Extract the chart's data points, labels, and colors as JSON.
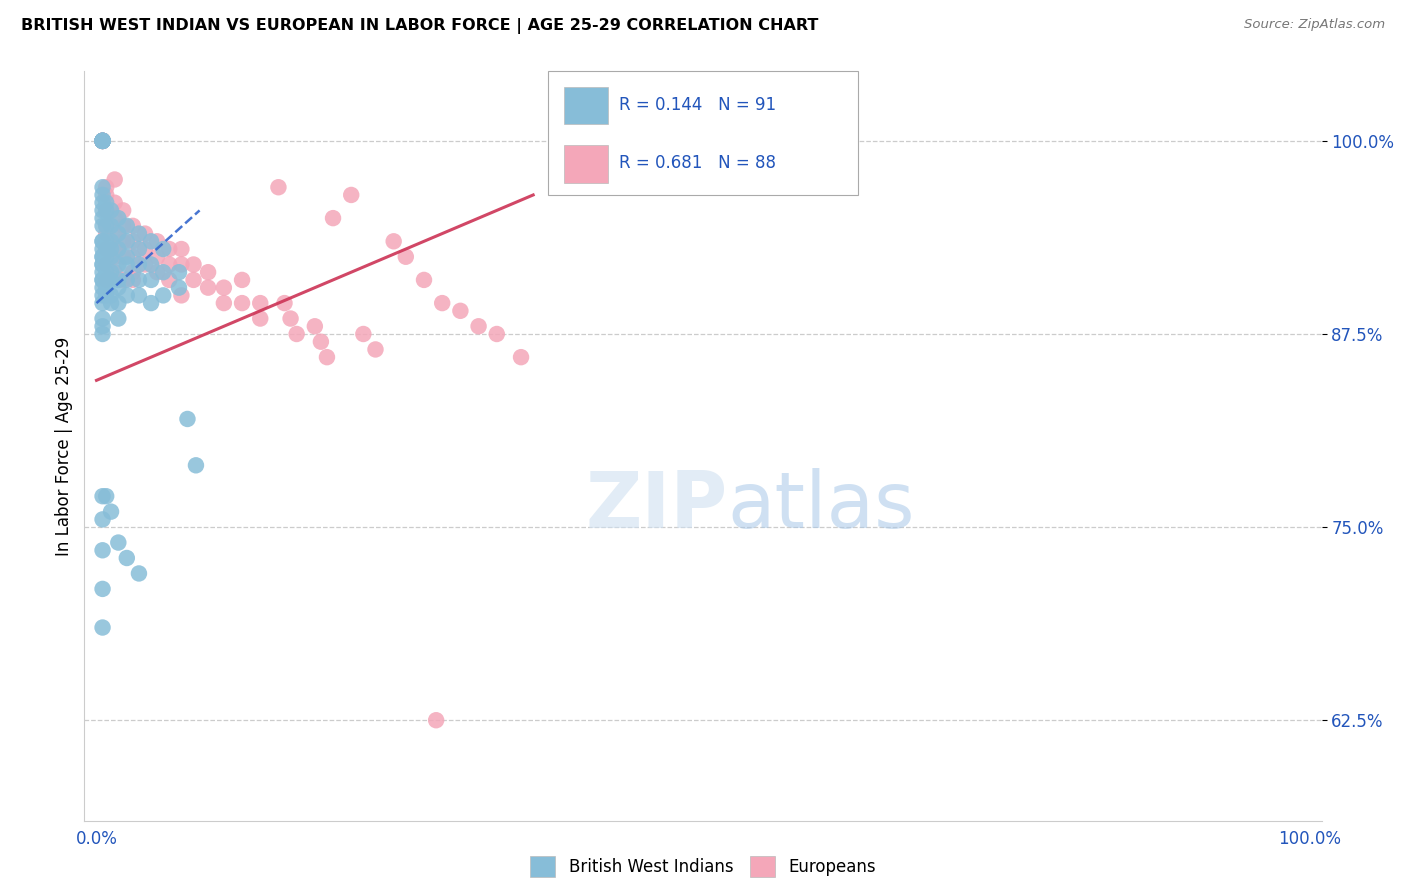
{
  "title": "BRITISH WEST INDIAN VS EUROPEAN IN LABOR FORCE | AGE 25-29 CORRELATION CHART",
  "source": "Source: ZipAtlas.com",
  "ylabel": "In Labor Force | Age 25-29",
  "ytick_labels": [
    "62.5%",
    "75.0%",
    "87.5%",
    "100.0%"
  ],
  "ytick_values": [
    0.625,
    0.75,
    0.875,
    1.0
  ],
  "xlim": [
    -0.01,
    1.01
  ],
  "ylim": [
    0.56,
    1.045
  ],
  "legend_label_blue": "British West Indians",
  "legend_label_pink": "Europeans",
  "blue_color": "#87bdd8",
  "pink_color": "#f4a7b9",
  "blue_line_color": "#3366cc",
  "pink_line_color": "#cc3355",
  "blue_scatter_x": [
    0.005,
    0.005,
    0.005,
    0.005,
    0.005,
    0.005,
    0.005,
    0.005,
    0.005,
    0.005,
    0.005,
    0.005,
    0.005,
    0.005,
    0.005,
    0.005,
    0.005,
    0.005,
    0.005,
    0.005,
    0.005,
    0.005,
    0.005,
    0.005,
    0.005,
    0.005,
    0.005,
    0.005,
    0.005,
    0.005,
    0.008,
    0.008,
    0.008,
    0.008,
    0.008,
    0.008,
    0.008,
    0.008,
    0.008,
    0.008,
    0.012,
    0.012,
    0.012,
    0.012,
    0.012,
    0.012,
    0.012,
    0.012,
    0.012,
    0.018,
    0.018,
    0.018,
    0.018,
    0.018,
    0.018,
    0.018,
    0.018,
    0.025,
    0.025,
    0.025,
    0.025,
    0.025,
    0.025,
    0.035,
    0.035,
    0.035,
    0.035,
    0.035,
    0.045,
    0.045,
    0.045,
    0.045,
    0.055,
    0.055,
    0.055,
    0.068,
    0.068,
    0.075,
    0.082,
    0.005,
    0.005,
    0.005,
    0.005,
    0.005,
    0.008,
    0.012,
    0.018,
    0.025,
    0.035
  ],
  "blue_scatter_y": [
    1.0,
    1.0,
    1.0,
    1.0,
    1.0,
    1.0,
    1.0,
    1.0,
    0.97,
    0.965,
    0.96,
    0.955,
    0.95,
    0.945,
    0.935,
    0.93,
    0.925,
    0.92,
    0.91,
    0.905,
    0.9,
    0.895,
    0.885,
    0.88,
    0.875,
    0.935,
    0.925,
    0.92,
    0.915,
    0.91,
    0.96,
    0.955,
    0.945,
    0.935,
    0.93,
    0.925,
    0.915,
    0.91,
    0.905,
    0.9,
    0.955,
    0.945,
    0.935,
    0.93,
    0.925,
    0.915,
    0.91,
    0.9,
    0.895,
    0.95,
    0.94,
    0.93,
    0.92,
    0.91,
    0.905,
    0.895,
    0.885,
    0.945,
    0.935,
    0.925,
    0.92,
    0.91,
    0.9,
    0.94,
    0.93,
    0.92,
    0.91,
    0.9,
    0.935,
    0.92,
    0.91,
    0.895,
    0.93,
    0.915,
    0.9,
    0.915,
    0.905,
    0.82,
    0.79,
    0.77,
    0.755,
    0.735,
    0.71,
    0.685,
    0.77,
    0.76,
    0.74,
    0.73,
    0.72
  ],
  "pink_scatter_x": [
    0.005,
    0.005,
    0.005,
    0.005,
    0.005,
    0.005,
    0.005,
    0.005,
    0.005,
    0.005,
    0.008,
    0.008,
    0.008,
    0.008,
    0.008,
    0.008,
    0.008,
    0.008,
    0.015,
    0.015,
    0.015,
    0.015,
    0.015,
    0.015,
    0.022,
    0.022,
    0.022,
    0.022,
    0.022,
    0.03,
    0.03,
    0.03,
    0.03,
    0.04,
    0.04,
    0.04,
    0.05,
    0.05,
    0.05,
    0.06,
    0.06,
    0.06,
    0.07,
    0.07,
    0.07,
    0.08,
    0.08,
    0.092,
    0.092,
    0.105,
    0.105,
    0.12,
    0.12,
    0.135,
    0.135,
    0.15,
    0.155,
    0.16,
    0.165,
    0.18,
    0.185,
    0.19,
    0.195,
    0.21,
    0.22,
    0.23,
    0.245,
    0.255,
    0.27,
    0.285,
    0.3,
    0.315,
    0.33,
    0.35,
    0.015,
    0.03,
    0.28
  ],
  "pink_scatter_y": [
    1.0,
    1.0,
    1.0,
    1.0,
    1.0,
    1.0,
    1.0,
    1.0,
    1.0,
    1.0,
    0.97,
    0.965,
    0.955,
    0.945,
    0.94,
    0.93,
    0.92,
    0.91,
    0.96,
    0.95,
    0.94,
    0.93,
    0.925,
    0.915,
    0.955,
    0.945,
    0.935,
    0.925,
    0.91,
    0.945,
    0.935,
    0.925,
    0.915,
    0.94,
    0.93,
    0.92,
    0.935,
    0.925,
    0.915,
    0.93,
    0.92,
    0.91,
    0.93,
    0.92,
    0.9,
    0.92,
    0.91,
    0.915,
    0.905,
    0.905,
    0.895,
    0.91,
    0.895,
    0.895,
    0.885,
    0.97,
    0.895,
    0.885,
    0.875,
    0.88,
    0.87,
    0.86,
    0.95,
    0.965,
    0.875,
    0.865,
    0.935,
    0.925,
    0.91,
    0.895,
    0.89,
    0.88,
    0.875,
    0.86,
    0.975,
    0.91,
    0.625
  ],
  "blue_line_x": [
    0.0,
    0.085
  ],
  "blue_line_y": [
    0.895,
    0.955
  ],
  "pink_line_x": [
    0.0,
    0.36
  ],
  "pink_line_y": [
    0.845,
    0.965
  ]
}
